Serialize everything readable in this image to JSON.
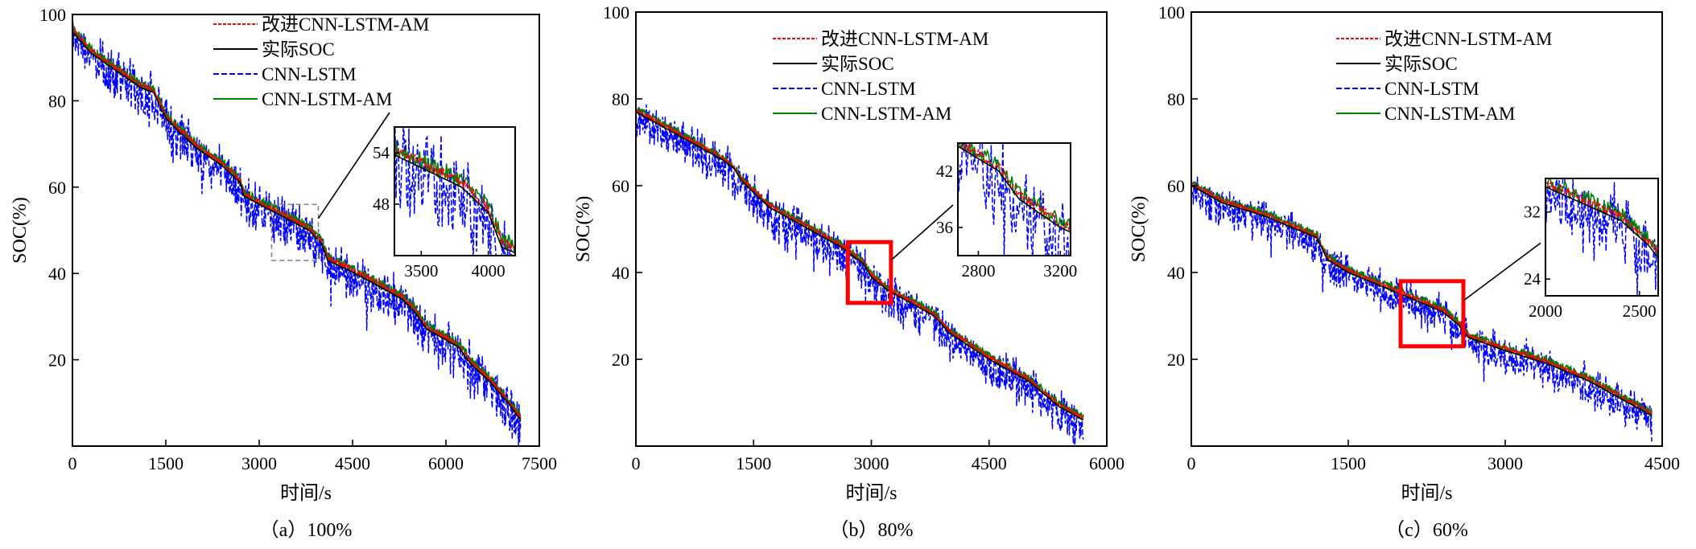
{
  "chart_data": [
    {
      "type": "line",
      "subtitle": "（a）100%",
      "xlabel": "时间/s",
      "ylabel": "SOC(%)",
      "xlim": [
        0,
        7500
      ],
      "ylim": [
        0,
        100
      ],
      "xticks": [
        "0",
        "1500",
        "3000",
        "4500",
        "6000",
        "7500"
      ],
      "yticks": [
        "20",
        "40",
        "60",
        "80",
        "100"
      ],
      "legend": [
        "改进CNN-LSTM-AM",
        "实际SOC",
        "CNN-LSTM",
        "CNN-LSTM-AM"
      ],
      "series": [
        {
          "name": "实际SOC",
          "x": [
            0,
            300,
            700,
            1100,
            1300,
            1400,
            1500,
            1700,
            2000,
            2400,
            2700,
            2750,
            3000,
            3400,
            3800,
            4000,
            4100,
            4400,
            4800,
            5300,
            5500,
            5700,
            6200,
            6400,
            6700,
            7000,
            7200
          ],
          "y": [
            96,
            91,
            87,
            83,
            82,
            79,
            76,
            73,
            69,
            65,
            61,
            58,
            56,
            53,
            50,
            47,
            43,
            41,
            38,
            34,
            31,
            27,
            23,
            19,
            15,
            10,
            6
          ]
        },
        {
          "name": "改进CNN-LSTM-AM",
          "offset": 0.6,
          "noise": 0.6
        },
        {
          "name": "CNN-LSTM-AM",
          "offset": 0.8,
          "noise": 1.1
        },
        {
          "name": "CNN-LSTM",
          "offset": -1.0,
          "noise": 7.0
        }
      ],
      "zoom_box": {
        "x": [
          3200,
          3950
        ],
        "y": [
          43,
          56
        ],
        "style": "dashed-gray"
      },
      "inset": {
        "xlim": [
          3300,
          4200
        ],
        "ylim": [
          42,
          57
        ],
        "xticks": [
          "3500",
          "4000"
        ],
        "yticks": [
          "54",
          "48"
        ]
      }
    },
    {
      "type": "line",
      "subtitle": "（b）80%",
      "xlabel": "时间/s",
      "ylabel": "SOC(%)",
      "xlim": [
        0,
        6000
      ],
      "ylim": [
        0,
        100
      ],
      "xticks": [
        "0",
        "1500",
        "3000",
        "4500",
        "6000"
      ],
      "yticks": [
        "20",
        "40",
        "60",
        "80",
        "100"
      ],
      "legend": [
        "改进CNN-LSTM-AM",
        "实际SOC",
        "CNN-LSTM",
        "CNN-LSTM-AM"
      ],
      "series": [
        {
          "name": "实际SOC",
          "x": [
            0,
            400,
            800,
            1100,
            1250,
            1350,
            1700,
            2200,
            2600,
            2900,
            3000,
            3200,
            3500,
            3800,
            3900,
            4000,
            4500,
            5000,
            5400,
            5700
          ],
          "y": [
            77,
            73,
            69,
            66,
            64,
            61,
            55,
            50,
            46,
            42,
            39,
            36,
            33,
            30,
            28,
            26,
            20,
            15,
            9,
            6
          ]
        },
        {
          "name": "改进CNN-LSTM-AM",
          "offset": 0.5,
          "noise": 0.5
        },
        {
          "name": "CNN-LSTM-AM",
          "offset": 0.7,
          "noise": 0.9
        },
        {
          "name": "CNN-LSTM",
          "offset": -1.2,
          "noise": 6.0
        }
      ],
      "zoom_box": {
        "x": [
          2700,
          3250
        ],
        "y": [
          33,
          47
        ],
        "style": "red"
      },
      "inset": {
        "xlim": [
          2700,
          3250
        ],
        "ylim": [
          33,
          45
        ],
        "xticks": [
          "2800",
          "3200"
        ],
        "yticks": [
          "42",
          "36"
        ]
      }
    },
    {
      "type": "line",
      "subtitle": "（c）60%",
      "xlabel": "时间/s",
      "ylabel": "SOC(%)",
      "xlim": [
        0,
        4500
      ],
      "ylim": [
        0,
        100
      ],
      "xticks": [
        "0",
        "1500",
        "3000",
        "4500"
      ],
      "yticks": [
        "20",
        "40",
        "60",
        "80",
        "100"
      ],
      "legend": [
        "改进CNN-LSTM-AM",
        "实际SOC",
        "CNN-LSTM",
        "CNN-LSTM-AM"
      ],
      "series": [
        {
          "name": "实际SOC",
          "x": [
            0,
            300,
            700,
            1000,
            1200,
            1300,
            1500,
            1800,
            2100,
            2400,
            2550,
            2650,
            3000,
            3400,
            3800,
            4100,
            4400
          ],
          "y": [
            60,
            56,
            53,
            50,
            48,
            43,
            40,
            37,
            34,
            31,
            28,
            25,
            22,
            19,
            15,
            11,
            7
          ]
        },
        {
          "name": "改进CNN-LSTM-AM",
          "offset": 0.5,
          "noise": 0.5
        },
        {
          "name": "CNN-LSTM-AM",
          "offset": 0.7,
          "noise": 0.9
        },
        {
          "name": "CNN-LSTM",
          "offset": -1.0,
          "noise": 5.5
        }
      ],
      "zoom_box": {
        "x": [
          2000,
          2600
        ],
        "y": [
          23,
          38
        ],
        "style": "red"
      },
      "inset": {
        "xlim": [
          2000,
          2600
        ],
        "ylim": [
          22,
          36
        ],
        "xticks": [
          "2000",
          "2500"
        ],
        "yticks": [
          "32",
          "24"
        ]
      }
    }
  ],
  "colors": {
    "改进CNN-LSTM-AM": "#ff0000",
    "实际SOC": "#000000",
    "CNN-LSTM": "#0000ff",
    "CNN-LSTM-AM": "#008000",
    "zoom_red": "#ff0000",
    "zoom_gray": "#888888"
  }
}
